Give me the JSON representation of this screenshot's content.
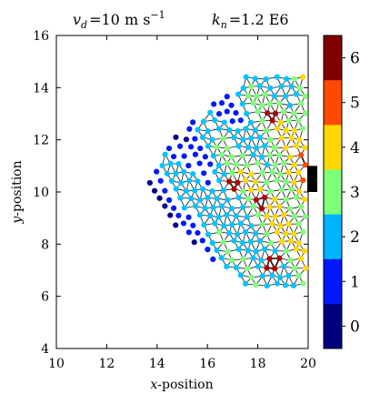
{
  "chart_data": {
    "type": "scatter",
    "header": {
      "vd_symbol": "v",
      "vd_sub": "d",
      "vd_rest": "=10 m s",
      "vd_exp": "−1",
      "kn_symbol": "k",
      "kn_sub": "n",
      "kn_rest": "=1.2 E6"
    },
    "xlabel": {
      "first": "x",
      "rest": "-position"
    },
    "ylabel": {
      "first": "y",
      "rest": "-position"
    },
    "xlim": [
      10,
      20
    ],
    "ylim": [
      4,
      16
    ],
    "xticks": [
      10,
      12,
      14,
      16,
      18,
      20
    ],
    "yticks": [
      4,
      6,
      8,
      10,
      12,
      14,
      16
    ],
    "wall": {
      "x": 20,
      "y_min": 10.0,
      "y_max": 11.0
    },
    "colorbar": {
      "min": -0.5,
      "max": 6.5,
      "ticks": [
        0,
        1,
        2,
        3,
        4,
        5,
        6
      ],
      "colors": [
        "#00007f",
        "#0000ff",
        "#007fff",
        "#00ffff",
        "#7fff7f",
        "#ffff00",
        "#ff7f00",
        "#ff0000",
        "#7f0000"
      ]
    },
    "grid": false,
    "legend": "none"
  }
}
